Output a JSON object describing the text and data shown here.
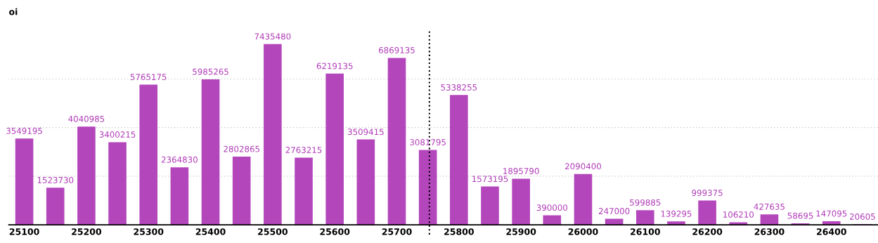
{
  "chart_data": {
    "type": "bar",
    "ylabel": "oi",
    "categories": [
      "25100",
      null,
      "25200",
      null,
      "25300",
      null,
      "25400",
      null,
      "25500",
      null,
      "25600",
      null,
      "25700",
      null,
      "25800",
      null,
      "25900",
      null,
      "26000",
      null,
      "26100",
      null,
      "26200",
      null,
      "26300",
      null,
      "26400",
      null
    ],
    "values": [
      3549195,
      1523730,
      4040985,
      3400215,
      5765175,
      2364830,
      5985265,
      2802865,
      7435480,
      2763215,
      6219135,
      3509415,
      6869135,
      3081795,
      5338255,
      1573195,
      1895790,
      390000,
      2090400,
      247000,
      599885,
      139295,
      999375,
      106210,
      427635,
      58695,
      147095,
      20605
    ],
    "color": "#b03cb8",
    "data_labels": true,
    "ylim": [
      0,
      8000000
    ],
    "yticks": [
      {
        "value": 2000000,
        "label": null
      },
      {
        "value": 4000000,
        "label": null
      },
      {
        "value": 6000000,
        "label": null
      }
    ],
    "grid": "y",
    "tick_labels": "x"
  }
}
